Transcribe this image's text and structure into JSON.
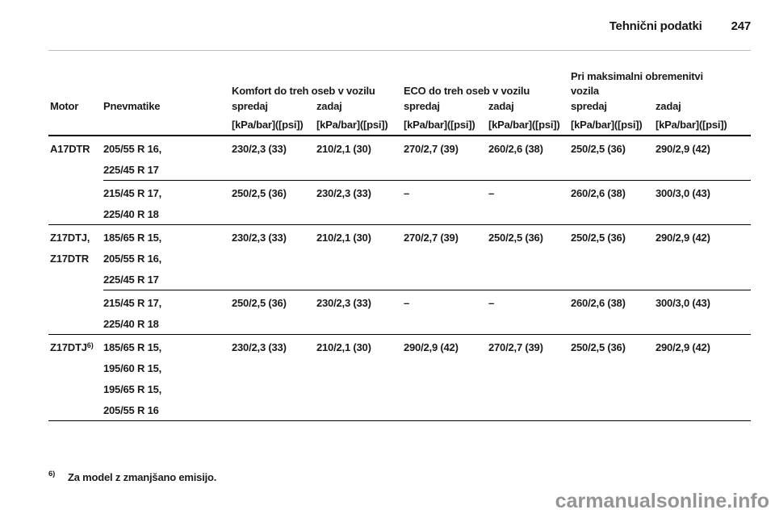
{
  "page": {
    "header_title": "Tehnični podatki",
    "page_number": "247",
    "footnote_marker": "6)",
    "footnote_text": "Za model z zmanjšano emisijo.",
    "watermark": "carmanualsonline.info"
  },
  "table": {
    "headers": {
      "motor": "Motor",
      "pnevmatike": "Pnevmatike",
      "komfort_group": "Komfort do treh oseb v vozilu",
      "eco_group": "ECO do treh oseb v vozilu",
      "max_group": "Pri maksimalni obremenitvi vozila",
      "spredaj": "spredaj",
      "zadaj": "zadaj",
      "unit": "[kPa/bar]([psi])"
    },
    "groups": [
      {
        "motor": [
          "A17DTR"
        ],
        "subrows": [
          {
            "tires": [
              "205/55 R 16,",
              "225/45 R 17"
            ],
            "values": [
              "230/2,3 (33)",
              "210/2,1 (30)",
              "270/2,7 (39)",
              "260/2,6 (38)",
              "250/2,5 (36)",
              "290/2,9 (42)"
            ]
          },
          {
            "tires": [
              "215/45 R 17,",
              "225/40 R 18"
            ],
            "values": [
              "250/2,5 (36)",
              "230/2,3 (33)",
              "–",
              "–",
              "260/2,6 (38)",
              "300/3,0 (43)"
            ]
          }
        ]
      },
      {
        "motor": [
          "Z17DTJ,",
          "Z17DTR"
        ],
        "subrows": [
          {
            "tires": [
              "185/65 R 15,",
              "205/55 R 16,",
              "225/45 R 17"
            ],
            "values": [
              "230/2,3 (33)",
              "210/2,1 (30)",
              "270/2,7 (39)",
              "250/2,5 (36)",
              "250/2,5 (36)",
              "290/2,9 (42)"
            ]
          },
          {
            "tires": [
              "215/45 R 17,",
              "225/40 R 18"
            ],
            "values": [
              "250/2,5 (36)",
              "230/2,3 (33)",
              "–",
              "–",
              "260/2,6 (38)",
              "300/3,0 (43)"
            ]
          }
        ]
      },
      {
        "motor": [
          "Z17DTJ"
        ],
        "motor_sup": "6)",
        "subrows": [
          {
            "tires": [
              "185/65 R 15,",
              "195/60 R 15,",
              "195/65 R 15,",
              "205/55 R 16"
            ],
            "values": [
              "230/2,3 (33)",
              "210/2,1 (30)",
              "290/2,9 (42)",
              "270/2,7 (39)",
              "250/2,5 (36)",
              "290/2,9 (42)"
            ]
          }
        ]
      }
    ]
  }
}
